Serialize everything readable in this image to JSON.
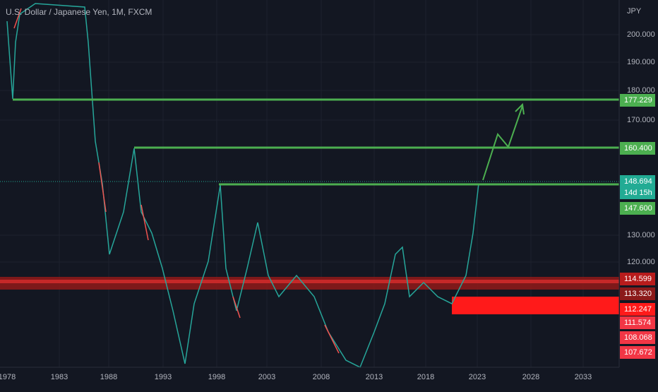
{
  "header": {
    "title": "U.S. Dollar / Japanese Yen, 1M, FXCM"
  },
  "price_axis": {
    "unit": "JPY",
    "labels": [
      "200.000",
      "190.000",
      "180.000",
      "170.000",
      "130.000",
      "120.000"
    ]
  },
  "price_tags": [
    {
      "label": "177.229"
    },
    {
      "label": "160.400"
    },
    {
      "label": "148.694"
    },
    {
      "label": "14d 15h"
    },
    {
      "label": "147.600"
    },
    {
      "label": "114.599"
    },
    {
      "label": "113.320"
    },
    {
      "label": "112.247"
    },
    {
      "label": "111.574"
    },
    {
      "label": "108.068"
    },
    {
      "label": "107.672"
    }
  ],
  "time_axis": {
    "labels": [
      "1978",
      "1983",
      "1988",
      "1993",
      "1998",
      "2003",
      "2008",
      "2013",
      "2018",
      "2023",
      "2028",
      "2033"
    ]
  }
}
